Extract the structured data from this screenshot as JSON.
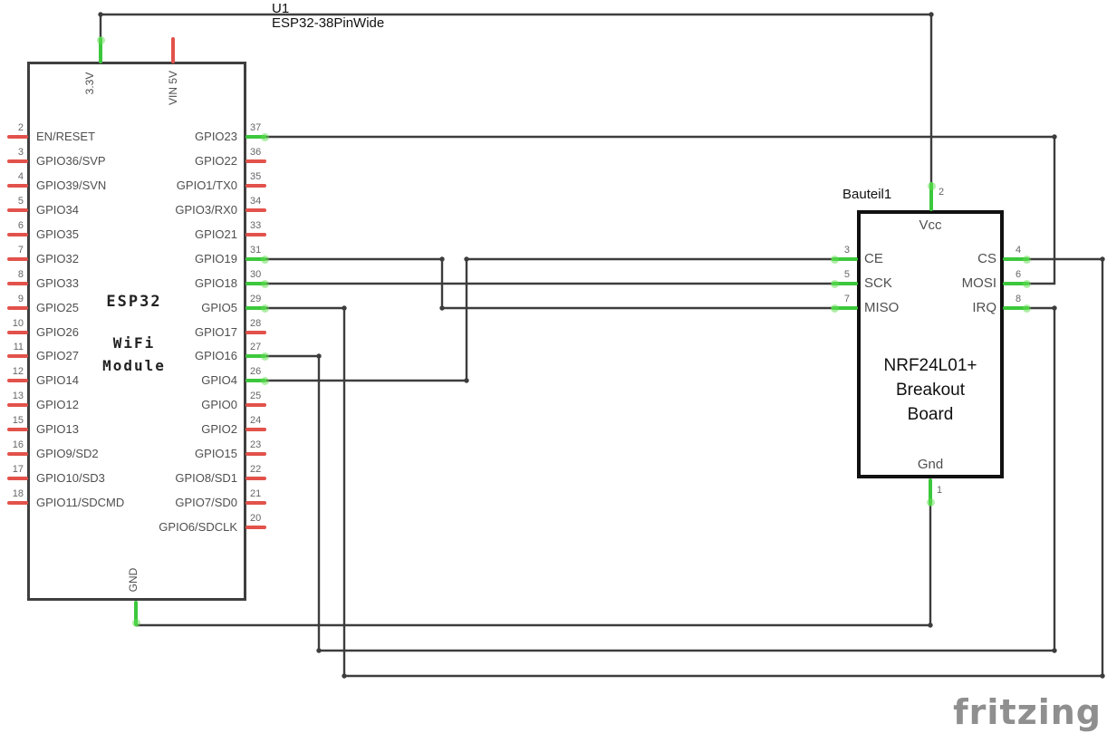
{
  "title": {
    "ref": "U1",
    "part": "ESP32-38PinWide"
  },
  "esp32": {
    "chip_label": "ESP32",
    "sub_label_lines": [
      "WiFi",
      "Module"
    ],
    "top_pins": [
      {
        "label": "3.3V",
        "color": "green"
      },
      {
        "label": "VIN 5V",
        "color": "red"
      }
    ],
    "bottom_pin": {
      "label": "GND",
      "color": "green"
    },
    "left_pins": [
      {
        "num": "2",
        "label": "EN/RESET",
        "color": "red"
      },
      {
        "num": "3",
        "label": "GPIO36/SVP",
        "color": "red"
      },
      {
        "num": "4",
        "label": "GPIO39/SVN",
        "color": "red"
      },
      {
        "num": "5",
        "label": "GPIO34",
        "color": "red"
      },
      {
        "num": "6",
        "label": "GPIO35",
        "color": "red"
      },
      {
        "num": "7",
        "label": "GPIO32",
        "color": "red"
      },
      {
        "num": "8",
        "label": "GPIO33",
        "color": "red"
      },
      {
        "num": "9",
        "label": "GPIO25",
        "color": "red"
      },
      {
        "num": "10",
        "label": "GPIO26",
        "color": "red"
      },
      {
        "num": "11",
        "label": "GPIO27",
        "color": "red"
      },
      {
        "num": "12",
        "label": "GPIO14",
        "color": "red"
      },
      {
        "num": "13",
        "label": "GPIO12",
        "color": "red"
      },
      {
        "num": "15",
        "label": "GPIO13",
        "color": "red"
      },
      {
        "num": "16",
        "label": "GPIO9/SD2",
        "color": "red"
      },
      {
        "num": "17",
        "label": "GPIO10/SD3",
        "color": "red"
      },
      {
        "num": "18",
        "label": "GPIO11/SDCMD",
        "color": "red"
      }
    ],
    "right_pins": [
      {
        "num": "37",
        "label": "GPIO23",
        "color": "green"
      },
      {
        "num": "36",
        "label": "GPIO22",
        "color": "red"
      },
      {
        "num": "35",
        "label": "GPIO1/TX0",
        "color": "red"
      },
      {
        "num": "34",
        "label": "GPIO3/RX0",
        "color": "red"
      },
      {
        "num": "33",
        "label": "GPIO21",
        "color": "red"
      },
      {
        "num": "31",
        "label": "GPIO19",
        "color": "green"
      },
      {
        "num": "30",
        "label": "GPIO18",
        "color": "green"
      },
      {
        "num": "29",
        "label": "GPIO5",
        "color": "green"
      },
      {
        "num": "28",
        "label": "GPIO17",
        "color": "red"
      },
      {
        "num": "27",
        "label": "GPIO16",
        "color": "green"
      },
      {
        "num": "26",
        "label": "GPIO4",
        "color": "green"
      },
      {
        "num": "25",
        "label": "GPIO0",
        "color": "red"
      },
      {
        "num": "24",
        "label": "GPIO2",
        "color": "red"
      },
      {
        "num": "23",
        "label": "GPIO15",
        "color": "red"
      },
      {
        "num": "22",
        "label": "GPIO8/SD1",
        "color": "red"
      },
      {
        "num": "21",
        "label": "GPIO7/SD0",
        "color": "red"
      },
      {
        "num": "20",
        "label": "GPIO6/SDCLK",
        "color": "red"
      }
    ]
  },
  "nrf": {
    "ref": "Bauteil1",
    "name_lines": [
      "NRF24L01+",
      "Breakout",
      "Board"
    ],
    "top_pin": {
      "num": "2",
      "label": "Vcc"
    },
    "bottom_pin": {
      "num": "1",
      "label": "Gnd"
    },
    "left_pins": [
      {
        "num": "3",
        "label": "CE"
      },
      {
        "num": "5",
        "label": "SCK"
      },
      {
        "num": "7",
        "label": "MISO"
      }
    ],
    "right_pins": [
      {
        "num": "4",
        "label": "CS"
      },
      {
        "num": "6",
        "label": "MOSI"
      },
      {
        "num": "8",
        "label": "IRQ"
      }
    ]
  },
  "nets": [
    {
      "id": "3v3-vcc",
      "from": "ESP32 3.3V",
      "to": "NRF24 Vcc"
    },
    {
      "id": "gpio23-mosi",
      "from": "ESP32 GPIO23",
      "to": "NRF24 MOSI"
    },
    {
      "id": "gpio19-miso",
      "from": "ESP32 GPIO19",
      "to": "NRF24 MISO"
    },
    {
      "id": "gpio18-sck",
      "from": "ESP32 GPIO18",
      "to": "NRF24 SCK"
    },
    {
      "id": "gpio5-cs",
      "from": "ESP32 GPIO5",
      "to": "NRF24 CS"
    },
    {
      "id": "gpio16-irq",
      "from": "ESP32 GPIO16",
      "to": "NRF24 IRQ"
    },
    {
      "id": "gpio4-ce",
      "from": "ESP32 GPIO4",
      "to": "NRF24 CE"
    },
    {
      "id": "gnd-gnd",
      "from": "ESP32 GND",
      "to": "NRF24 Gnd"
    }
  ],
  "watermark": "fritzing",
  "colors": {
    "wire": "#3d3d3d",
    "pin_red": "#e2524b",
    "pin_green": "#3cc83c",
    "pin_halo": "rgba(97,221,82,0.5)",
    "label": "#4f4f4f",
    "number": "#666666"
  }
}
